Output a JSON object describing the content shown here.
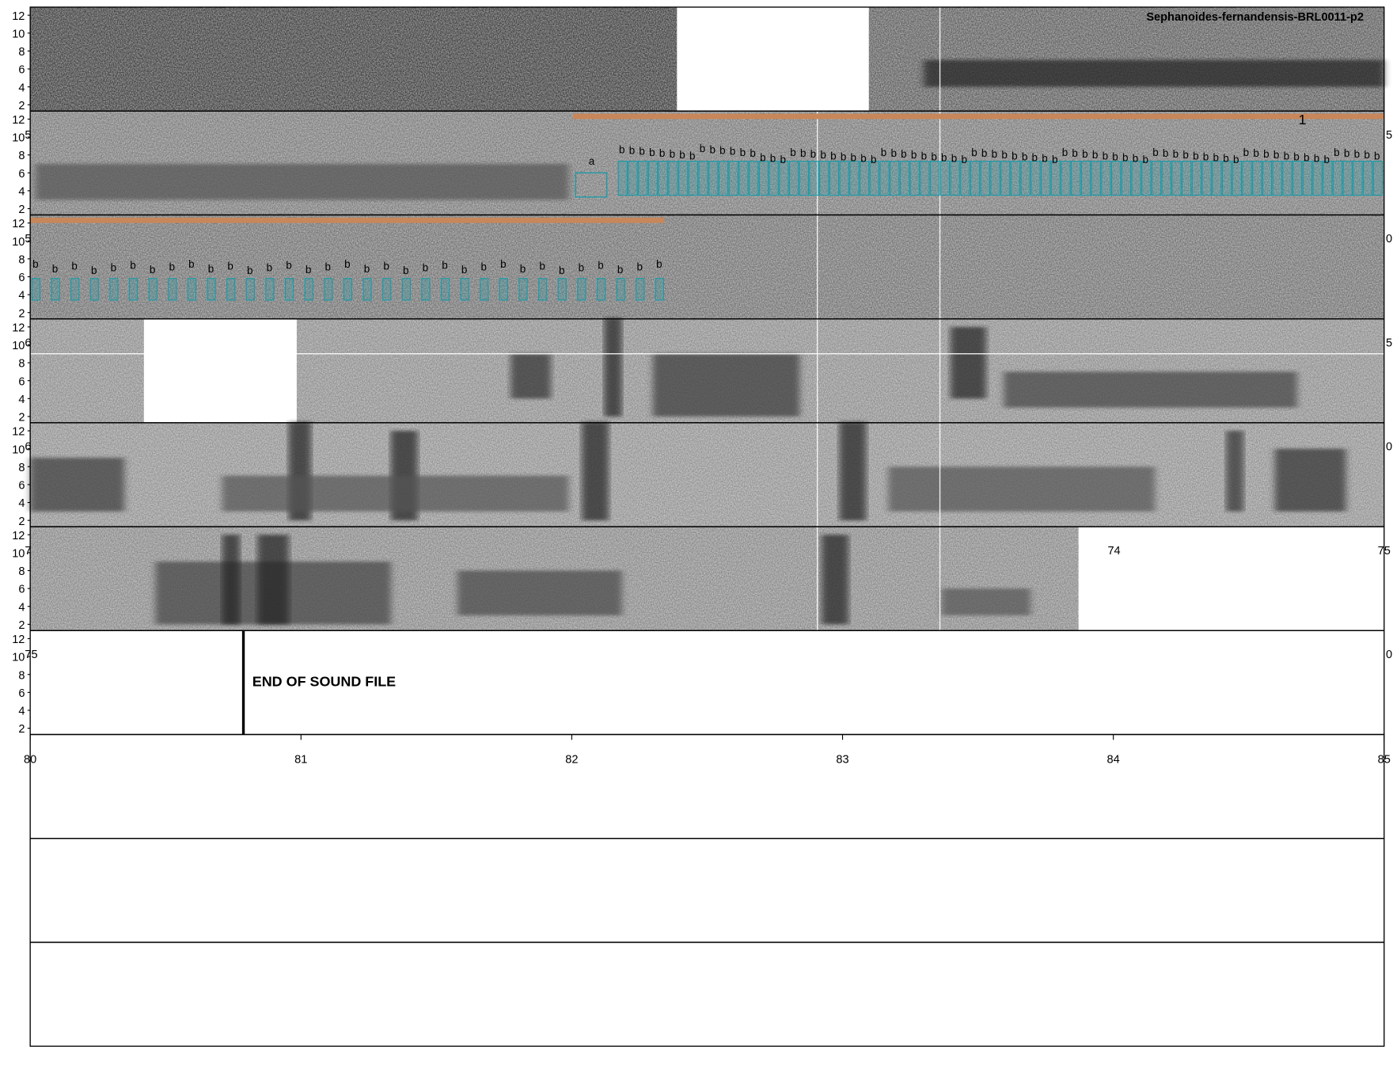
{
  "title": "Sephanoides-fernandensis-BRL0011-p2",
  "yticks": [
    12,
    10,
    8,
    6,
    4,
    2
  ],
  "ylim": [
    1.3,
    12.9
  ],
  "xticks": [
    "80",
    "81",
    "82",
    "83",
    "84",
    "85"
  ],
  "end_label": "END OF SOUND FILE",
  "segment_label": "1",
  "panel_time_labels": [
    "74",
    "75"
  ],
  "edge_labels": [
    "5",
    "5",
    "5",
    "0",
    "6",
    "5",
    "6",
    "0",
    "7",
    "75",
    "0"
  ],
  "row2_syllables": [
    "a",
    "b",
    "b",
    "b",
    "b",
    "b",
    "b",
    "b",
    "b",
    "b",
    "b",
    "b",
    "b",
    "b",
    "b",
    "b",
    "b",
    "b",
    "b",
    "b",
    "b",
    "b",
    "b",
    "b",
    "b",
    "b",
    "b",
    "b",
    "b",
    "b",
    "b",
    "b",
    "b",
    "b",
    "b",
    "b",
    "b",
    "b",
    "b",
    "b",
    "b",
    "b",
    "b",
    "b",
    "b",
    "b",
    "b",
    "b",
    "b",
    "b",
    "b",
    "b",
    "b",
    "b",
    "b",
    "b",
    "b",
    "b",
    "b",
    "b",
    "b",
    "b",
    "b",
    "b",
    "b",
    "b",
    "b",
    "b",
    "b",
    "b",
    "b",
    "b",
    "b",
    "b",
    "b",
    "b",
    "b"
  ],
  "row3_syllables": [
    "b",
    "b",
    "b",
    "b",
    "b",
    "b",
    "b",
    "b",
    "b",
    "b",
    "b",
    "b",
    "b",
    "b",
    "b",
    "b",
    "b",
    "b",
    "b",
    "b",
    "b",
    "b",
    "b",
    "b",
    "b",
    "b",
    "b",
    "b",
    "b",
    "b",
    "b",
    "b",
    "b"
  ]
}
